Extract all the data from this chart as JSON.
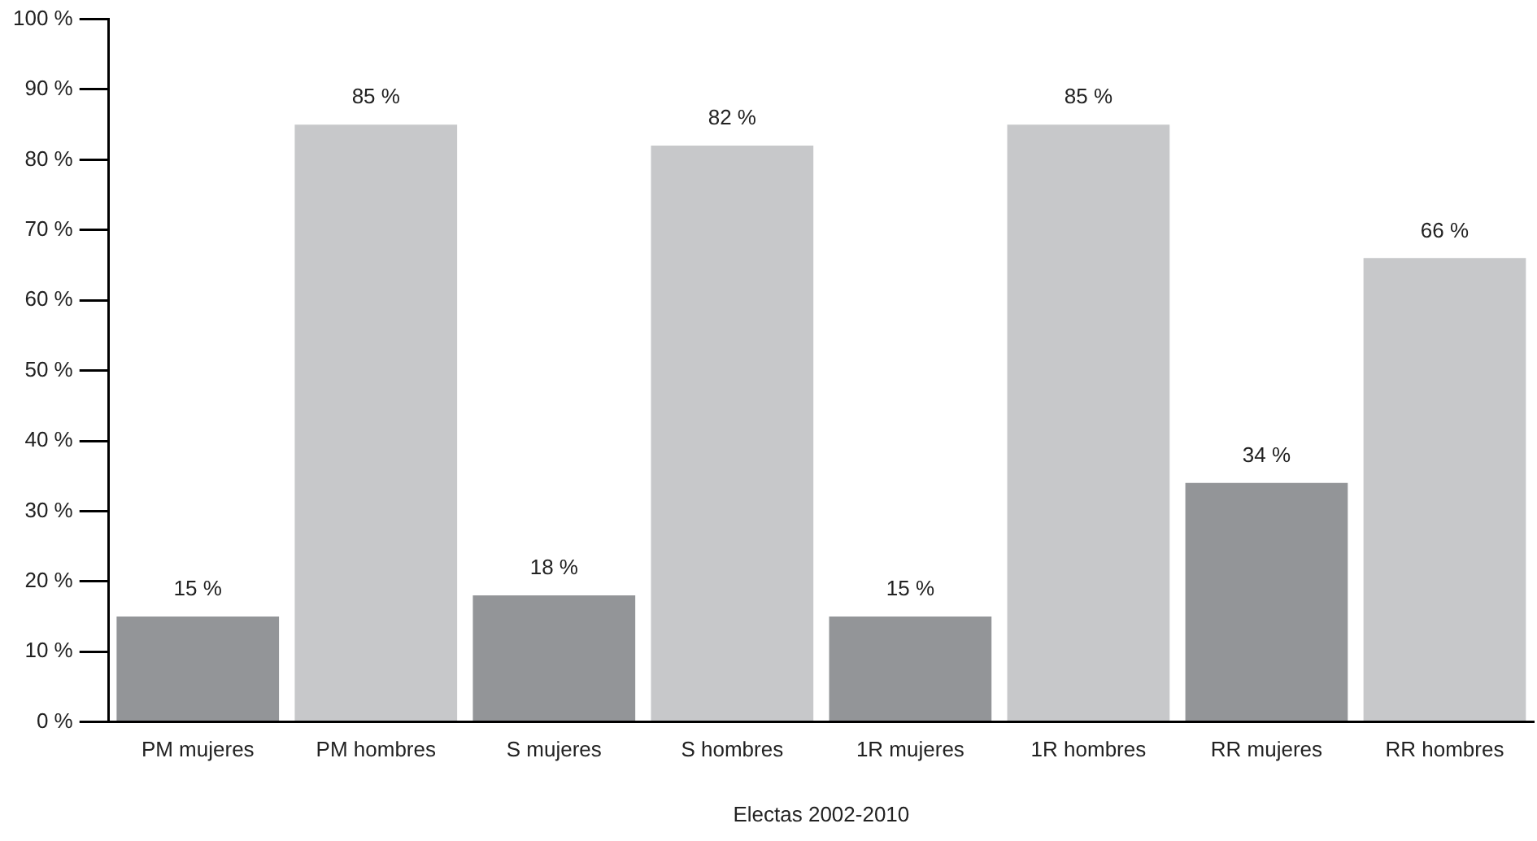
{
  "chart_data": {
    "type": "bar",
    "xlabel": "Electas 2002-2010",
    "categories": [
      "PM mujeres",
      "PM hombres",
      "S mujeres",
      "S hombres",
      "1R mujeres",
      "1R hombres",
      "RR mujeres",
      "RR hombres"
    ],
    "values": [
      15,
      85,
      18,
      82,
      15,
      85,
      34,
      66
    ],
    "colors": [
      "#939598",
      "#c7c8ca",
      "#939598",
      "#c7c8ca",
      "#939598",
      "#c7c8ca",
      "#939598",
      "#c7c8ca"
    ],
    "value_labels": [
      "15 %",
      "85 %",
      "18 %",
      "82 %",
      "15 %",
      "85 %",
      "34 %",
      "66 %"
    ],
    "ylim": [
      0,
      100
    ],
    "yticks": [
      {
        "value": 0,
        "label": "0 %"
      },
      {
        "value": 10,
        "label": "10 %"
      },
      {
        "value": 20,
        "label": "20 %"
      },
      {
        "value": 30,
        "label": "30 %"
      },
      {
        "value": 40,
        "label": "40 %"
      },
      {
        "value": 50,
        "label": "50 %"
      },
      {
        "value": 60,
        "label": "60 %"
      },
      {
        "value": 70,
        "label": "70 %"
      },
      {
        "value": 80,
        "label": "80 %"
      },
      {
        "value": 90,
        "label": "90 %"
      },
      {
        "value": 100,
        "label": "100 %"
      }
    ],
    "grid": false,
    "legend": false
  }
}
